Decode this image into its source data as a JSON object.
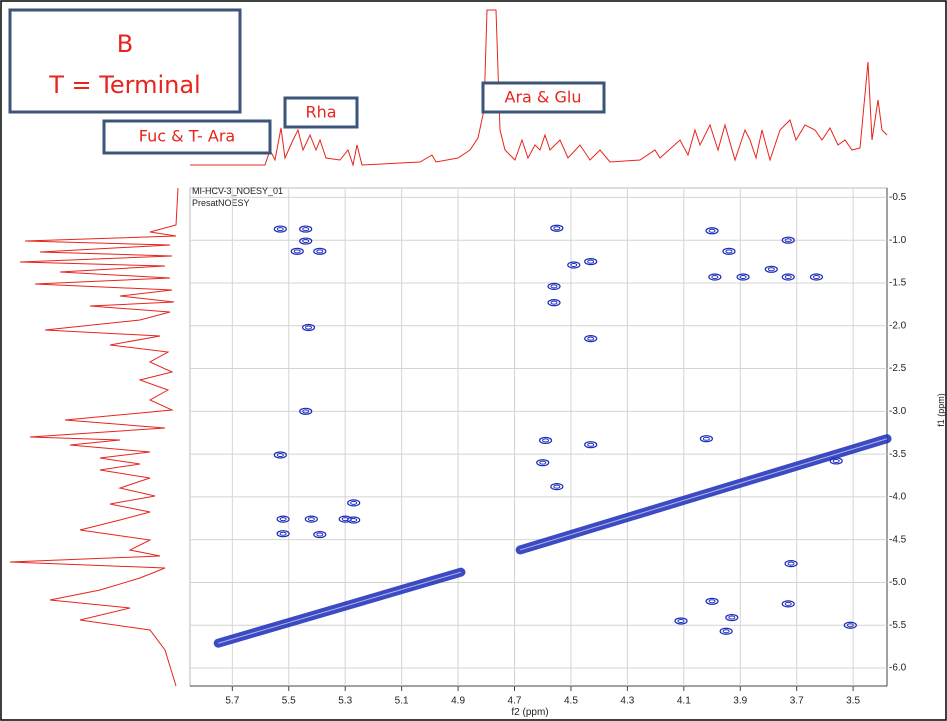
{
  "chart_data": {
    "type": "scatter",
    "title": "MI-HCV-3_NOESY_01",
    "subtitle": "PresatNOESY",
    "x_label": "f2 (ppm)",
    "y_label": "f1 (ppm)",
    "annotations": [
      "B",
      "T = Terminal",
      "Fuc & T- Ara",
      "Rha",
      "Ara & Glu"
    ],
    "color": "#1a2bb8",
    "trace_color": "#e8241c",
    "xlim": [
      5.85,
      3.38
    ],
    "ylim": [
      0.39,
      6.21
    ],
    "xticks": [
      5.7,
      5.5,
      5.3,
      5.1,
      4.9,
      4.7,
      4.5,
      4.3,
      4.1,
      3.9,
      3.7,
      3.5
    ],
    "yticks": [
      {
        "value": 0.5,
        "label": "-0.5"
      },
      {
        "value": 1.0,
        "label": "-1.0"
      },
      {
        "value": 1.5,
        "label": "-1.5"
      },
      {
        "value": 2.0,
        "label": "-2.0"
      },
      {
        "value": 2.5,
        "label": "-2.5"
      },
      {
        "value": 3.0,
        "label": "-3.0"
      },
      {
        "value": 3.5,
        "label": "-3.5"
      },
      {
        "value": 4.0,
        "label": "-4.0"
      },
      {
        "value": 4.5,
        "label": "-4.5"
      },
      {
        "value": 5.0,
        "label": "-5.0"
      },
      {
        "value": 5.5,
        "label": "-5.5"
      },
      {
        "value": 6.0,
        "label": "-6.0"
      }
    ],
    "grid": true,
    "x": [
      5.53,
      5.44,
      5.44,
      5.47,
      5.39,
      5.43,
      5.44,
      5.53,
      5.52,
      5.52,
      5.42,
      5.39,
      5.3,
      5.27,
      5.27,
      4.55,
      4.49,
      4.43,
      4.56,
      4.56,
      4.43,
      4.59,
      4.6,
      4.55,
      4.43,
      4.0,
      3.94,
      3.73,
      3.99,
      3.89,
      3.79,
      3.73,
      3.63,
      4.02,
      4.0,
      3.93,
      4.11,
      3.95,
      3.51,
      3.73,
      3.56,
      3.72
    ],
    "values": [
      0.87,
      0.87,
      1.01,
      1.13,
      1.13,
      2.02,
      3.0,
      3.51,
      4.26,
      4.43,
      4.26,
      4.44,
      4.26,
      4.07,
      4.27,
      0.86,
      1.29,
      1.25,
      1.54,
      1.73,
      2.15,
      3.34,
      3.6,
      3.88,
      3.39,
      0.89,
      1.13,
      1.0,
      1.43,
      1.43,
      1.34,
      1.43,
      1.43,
      3.32,
      5.22,
      5.41,
      5.45,
      5.57,
      5.5,
      5.25,
      3.58,
      4.78
    ],
    "diagonal": {
      "x": [
        5.75,
        4.89,
        null,
        4.68,
        3.38
      ],
      "values": [
        5.71,
        4.88,
        null,
        4.62,
        3.32
      ]
    }
  }
}
